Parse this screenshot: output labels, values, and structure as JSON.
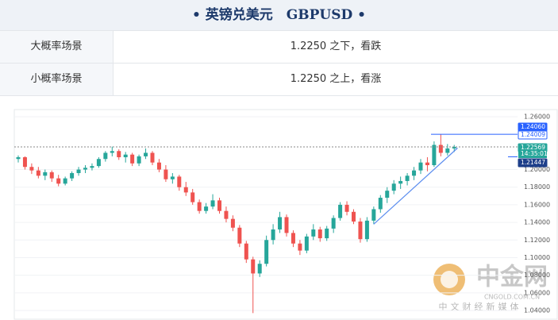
{
  "header": {
    "title": "• 英镑兑美元　GBPUSD •"
  },
  "table": {
    "rows": [
      [
        "大概率场景",
        "1.2250 之下，看跌"
      ],
      [
        "小概率场景",
        "1.2250 之上，看涨"
      ]
    ]
  },
  "chart_data": {
    "type": "candlestick",
    "up_color": "#26a69a",
    "down_color": "#ef5350",
    "ylim": [
      1.04,
      1.26
    ],
    "yticks": [
      {
        "value": 1.26,
        "label": "1.26000"
      },
      {
        "value": 1.2,
        "label": "1.20000"
      },
      {
        "value": 1.18,
        "label": "1.18000"
      },
      {
        "value": 1.16,
        "label": "1.16000"
      },
      {
        "value": 1.14,
        "label": "1.14000"
      },
      {
        "value": 1.12,
        "label": "1.12000"
      },
      {
        "value": 1.1,
        "label": "1.10000"
      },
      {
        "value": 1.08,
        "label": "1.08000"
      },
      {
        "value": 1.06,
        "label": "1.06000"
      },
      {
        "value": 1.04,
        "label": "1.04000"
      }
    ],
    "grid": true,
    "candles": [
      [
        1.212,
        1.216,
        1.208,
        1.214
      ],
      [
        1.214,
        1.215,
        1.2,
        1.203
      ],
      [
        1.203,
        1.207,
        1.195,
        1.199
      ],
      [
        1.199,
        1.203,
        1.19,
        1.193
      ],
      [
        1.193,
        1.2,
        1.188,
        1.197
      ],
      [
        1.197,
        1.199,
        1.186,
        1.19
      ],
      [
        1.19,
        1.194,
        1.181,
        1.184
      ],
      [
        1.184,
        1.192,
        1.182,
        1.19
      ],
      [
        1.19,
        1.198,
        1.187,
        1.196
      ],
      [
        1.196,
        1.203,
        1.193,
        1.2
      ],
      [
        1.2,
        1.205,
        1.196,
        1.202
      ],
      [
        1.202,
        1.207,
        1.199,
        1.204
      ],
      [
        1.204,
        1.214,
        1.202,
        1.212
      ],
      [
        1.212,
        1.221,
        1.209,
        1.219
      ],
      [
        1.219,
        1.226,
        1.215,
        1.221
      ],
      [
        1.221,
        1.223,
        1.211,
        1.214
      ],
      [
        1.214,
        1.22,
        1.208,
        1.217
      ],
      [
        1.217,
        1.219,
        1.204,
        1.207
      ],
      [
        1.207,
        1.217,
        1.204,
        1.215
      ],
      [
        1.215,
        1.224,
        1.212,
        1.219
      ],
      [
        1.219,
        1.221,
        1.205,
        1.208
      ],
      [
        1.208,
        1.212,
        1.197,
        1.2
      ],
      [
        1.2,
        1.205,
        1.186,
        1.189
      ],
      [
        1.189,
        1.196,
        1.184,
        1.192
      ],
      [
        1.192,
        1.194,
        1.176,
        1.18
      ],
      [
        1.18,
        1.186,
        1.17,
        1.174
      ],
      [
        1.174,
        1.178,
        1.16,
        1.163
      ],
      [
        1.163,
        1.166,
        1.15,
        1.153
      ],
      [
        1.153,
        1.162,
        1.15,
        1.158
      ],
      [
        1.158,
        1.172,
        1.155,
        1.165
      ],
      [
        1.165,
        1.168,
        1.15,
        1.153
      ],
      [
        1.153,
        1.158,
        1.14,
        1.144
      ],
      [
        1.144,
        1.148,
        1.13,
        1.134
      ],
      [
        1.134,
        1.137,
        1.112,
        1.116
      ],
      [
        1.116,
        1.119,
        1.094,
        1.098
      ],
      [
        1.098,
        1.101,
        1.037,
        1.082
      ],
      [
        1.082,
        1.097,
        1.078,
        1.093
      ],
      [
        1.093,
        1.125,
        1.09,
        1.12
      ],
      [
        1.12,
        1.138,
        1.115,
        1.132
      ],
      [
        1.132,
        1.152,
        1.128,
        1.146
      ],
      [
        1.146,
        1.149,
        1.124,
        1.128
      ],
      [
        1.128,
        1.131,
        1.112,
        1.116
      ],
      [
        1.116,
        1.12,
        1.103,
        1.108
      ],
      [
        1.108,
        1.127,
        1.105,
        1.124
      ],
      [
        1.124,
        1.138,
        1.12,
        1.132
      ],
      [
        1.132,
        1.135,
        1.118,
        1.122
      ],
      [
        1.122,
        1.136,
        1.119,
        1.133
      ],
      [
        1.133,
        1.148,
        1.128,
        1.145
      ],
      [
        1.145,
        1.163,
        1.142,
        1.16
      ],
      [
        1.16,
        1.164,
        1.148,
        1.152
      ],
      [
        1.152,
        1.155,
        1.138,
        1.141
      ],
      [
        1.141,
        1.145,
        1.117,
        1.121
      ],
      [
        1.121,
        1.146,
        1.118,
        1.142
      ],
      [
        1.142,
        1.158,
        1.138,
        1.155
      ],
      [
        1.155,
        1.171,
        1.151,
        1.168
      ],
      [
        1.168,
        1.18,
        1.162,
        1.176
      ],
      [
        1.176,
        1.188,
        1.172,
        1.184
      ],
      [
        1.184,
        1.192,
        1.178,
        1.187
      ],
      [
        1.187,
        1.196,
        1.182,
        1.193
      ],
      [
        1.193,
        1.203,
        1.188,
        1.199
      ],
      [
        1.199,
        1.212,
        1.195,
        1.208
      ],
      [
        1.208,
        1.214,
        1.198,
        1.205
      ],
      [
        1.205,
        1.232,
        1.203,
        1.228
      ],
      [
        1.228,
        1.24,
        1.215,
        1.219
      ],
      [
        1.219,
        1.229,
        1.216,
        1.224
      ],
      [
        1.224,
        1.228,
        1.22,
        1.2257
      ]
    ],
    "levels": [
      {
        "value": 1.2406,
        "label": "1.24060",
        "color": "#2962ff"
      },
      {
        "value": 1.24009,
        "label": "1.24009",
        "color": "#ffffff"
      },
      {
        "value": 1.22569,
        "label": "1.22569",
        "color": "#26a69a"
      },
      {
        "value": 1.21447,
        "label": "1.21447",
        "color": "#1e3f8a"
      }
    ],
    "countdown": "14:35:01",
    "trendline": {
      "x": [
        53,
        65.5
      ],
      "y": [
        1.138,
        1.2245
      ],
      "color": "#5b8def"
    }
  },
  "watermark": {
    "brand": "中金网",
    "site": "CNGOLD.COM.CN",
    "tagline": "中文财经新媒体"
  }
}
